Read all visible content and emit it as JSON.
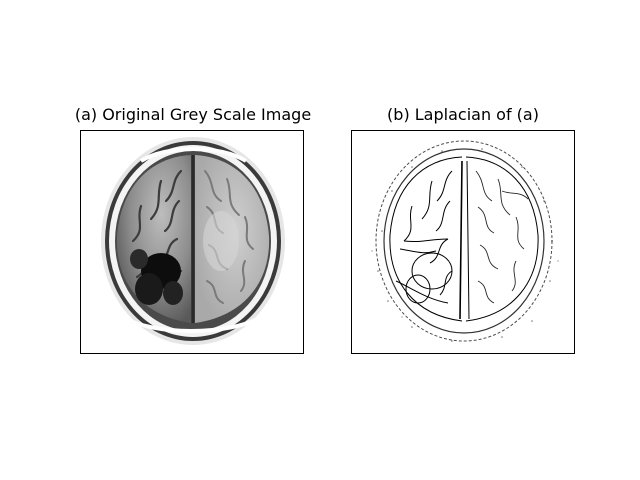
{
  "figure": {
    "panels": [
      {
        "title": "(a) Original Grey Scale Image",
        "image": "grayscale axial brain MRI slice with dark lesion in lower-left hemisphere"
      },
      {
        "title": "(b) Laplacian of (a)",
        "image": "edge map of the brain MRI slice, thin black outlines on white"
      }
    ]
  }
}
